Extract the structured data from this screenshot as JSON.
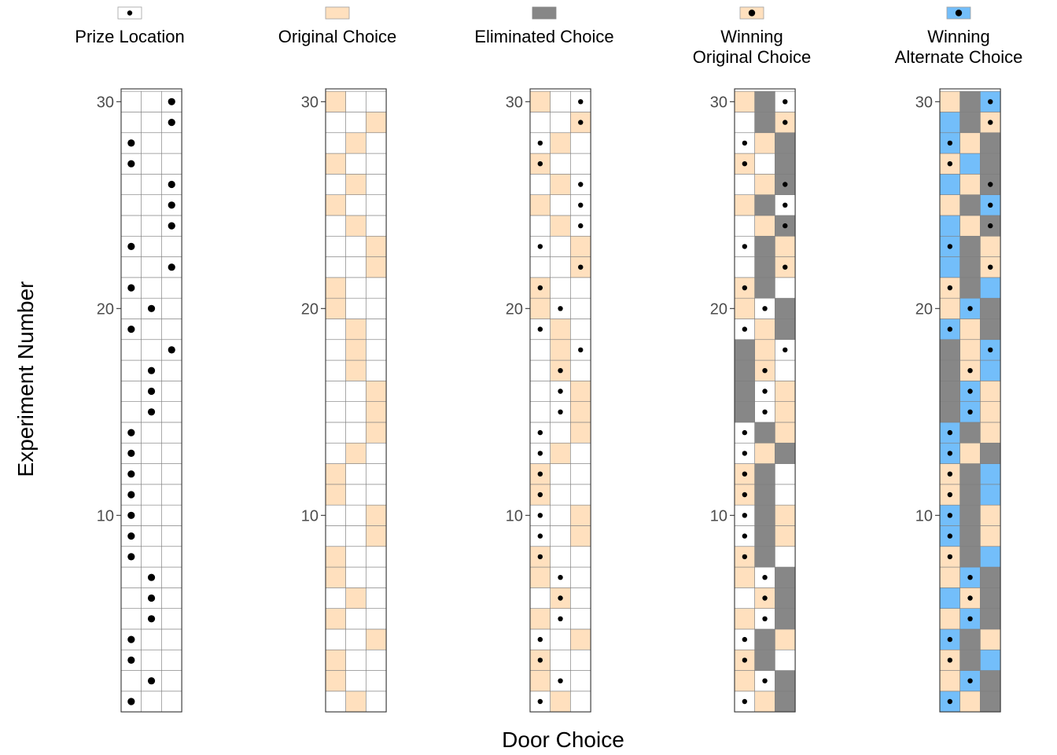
{
  "chart_data": {
    "type": "heatmap",
    "xlabel": "Door Choice",
    "ylabel": "Experiment Number",
    "yticks": [
      10,
      20,
      30
    ],
    "ylim": [
      1,
      30
    ],
    "doors": [
      1,
      2,
      3
    ],
    "legend_position": "top",
    "colors": {
      "original": "#FFE0BE",
      "eliminated": "#878787",
      "alternate": "#73BEFA",
      "empty": "#FFFFFF",
      "grid": "#7F7F7F",
      "dot": "#000000"
    },
    "legend": [
      {
        "label": "Prize Location",
        "fill": "empty",
        "dot": true
      },
      {
        "label": "Original Choice",
        "fill": "original",
        "dot": false
      },
      {
        "label": "Eliminated Choice",
        "fill": "eliminated",
        "dot": false
      },
      {
        "label": "Winning\nOriginal Choice",
        "fill": "original",
        "dot": true
      },
      {
        "label": "Winning\nAlternate Choice",
        "fill": "alternate",
        "dot": true
      }
    ],
    "panels": [
      "Prize Location",
      "Original Choice",
      "Eliminated Choice",
      "Winning Original Choice",
      "Winning Alternate Choice"
    ],
    "prize": [
      1,
      2,
      1,
      1,
      2,
      2,
      2,
      1,
      1,
      1,
      1,
      1,
      1,
      1,
      2,
      2,
      2,
      3,
      1,
      2,
      1,
      3,
      1,
      3,
      3,
      3,
      1,
      1,
      3,
      3
    ],
    "original": [
      2,
      1,
      1,
      3,
      1,
      2,
      1,
      1,
      3,
      3,
      1,
      1,
      2,
      3,
      3,
      3,
      2,
      2,
      2,
      1,
      1,
      3,
      3,
      2,
      1,
      2,
      1,
      2,
      3,
      1
    ],
    "eliminated": [
      3,
      3,
      2,
      2,
      3,
      3,
      3,
      2,
      2,
      2,
      2,
      2,
      3,
      2,
      1,
      1,
      1,
      1,
      3,
      3,
      2,
      2,
      2,
      3,
      2,
      3,
      3,
      3,
      2,
      2
    ]
  }
}
